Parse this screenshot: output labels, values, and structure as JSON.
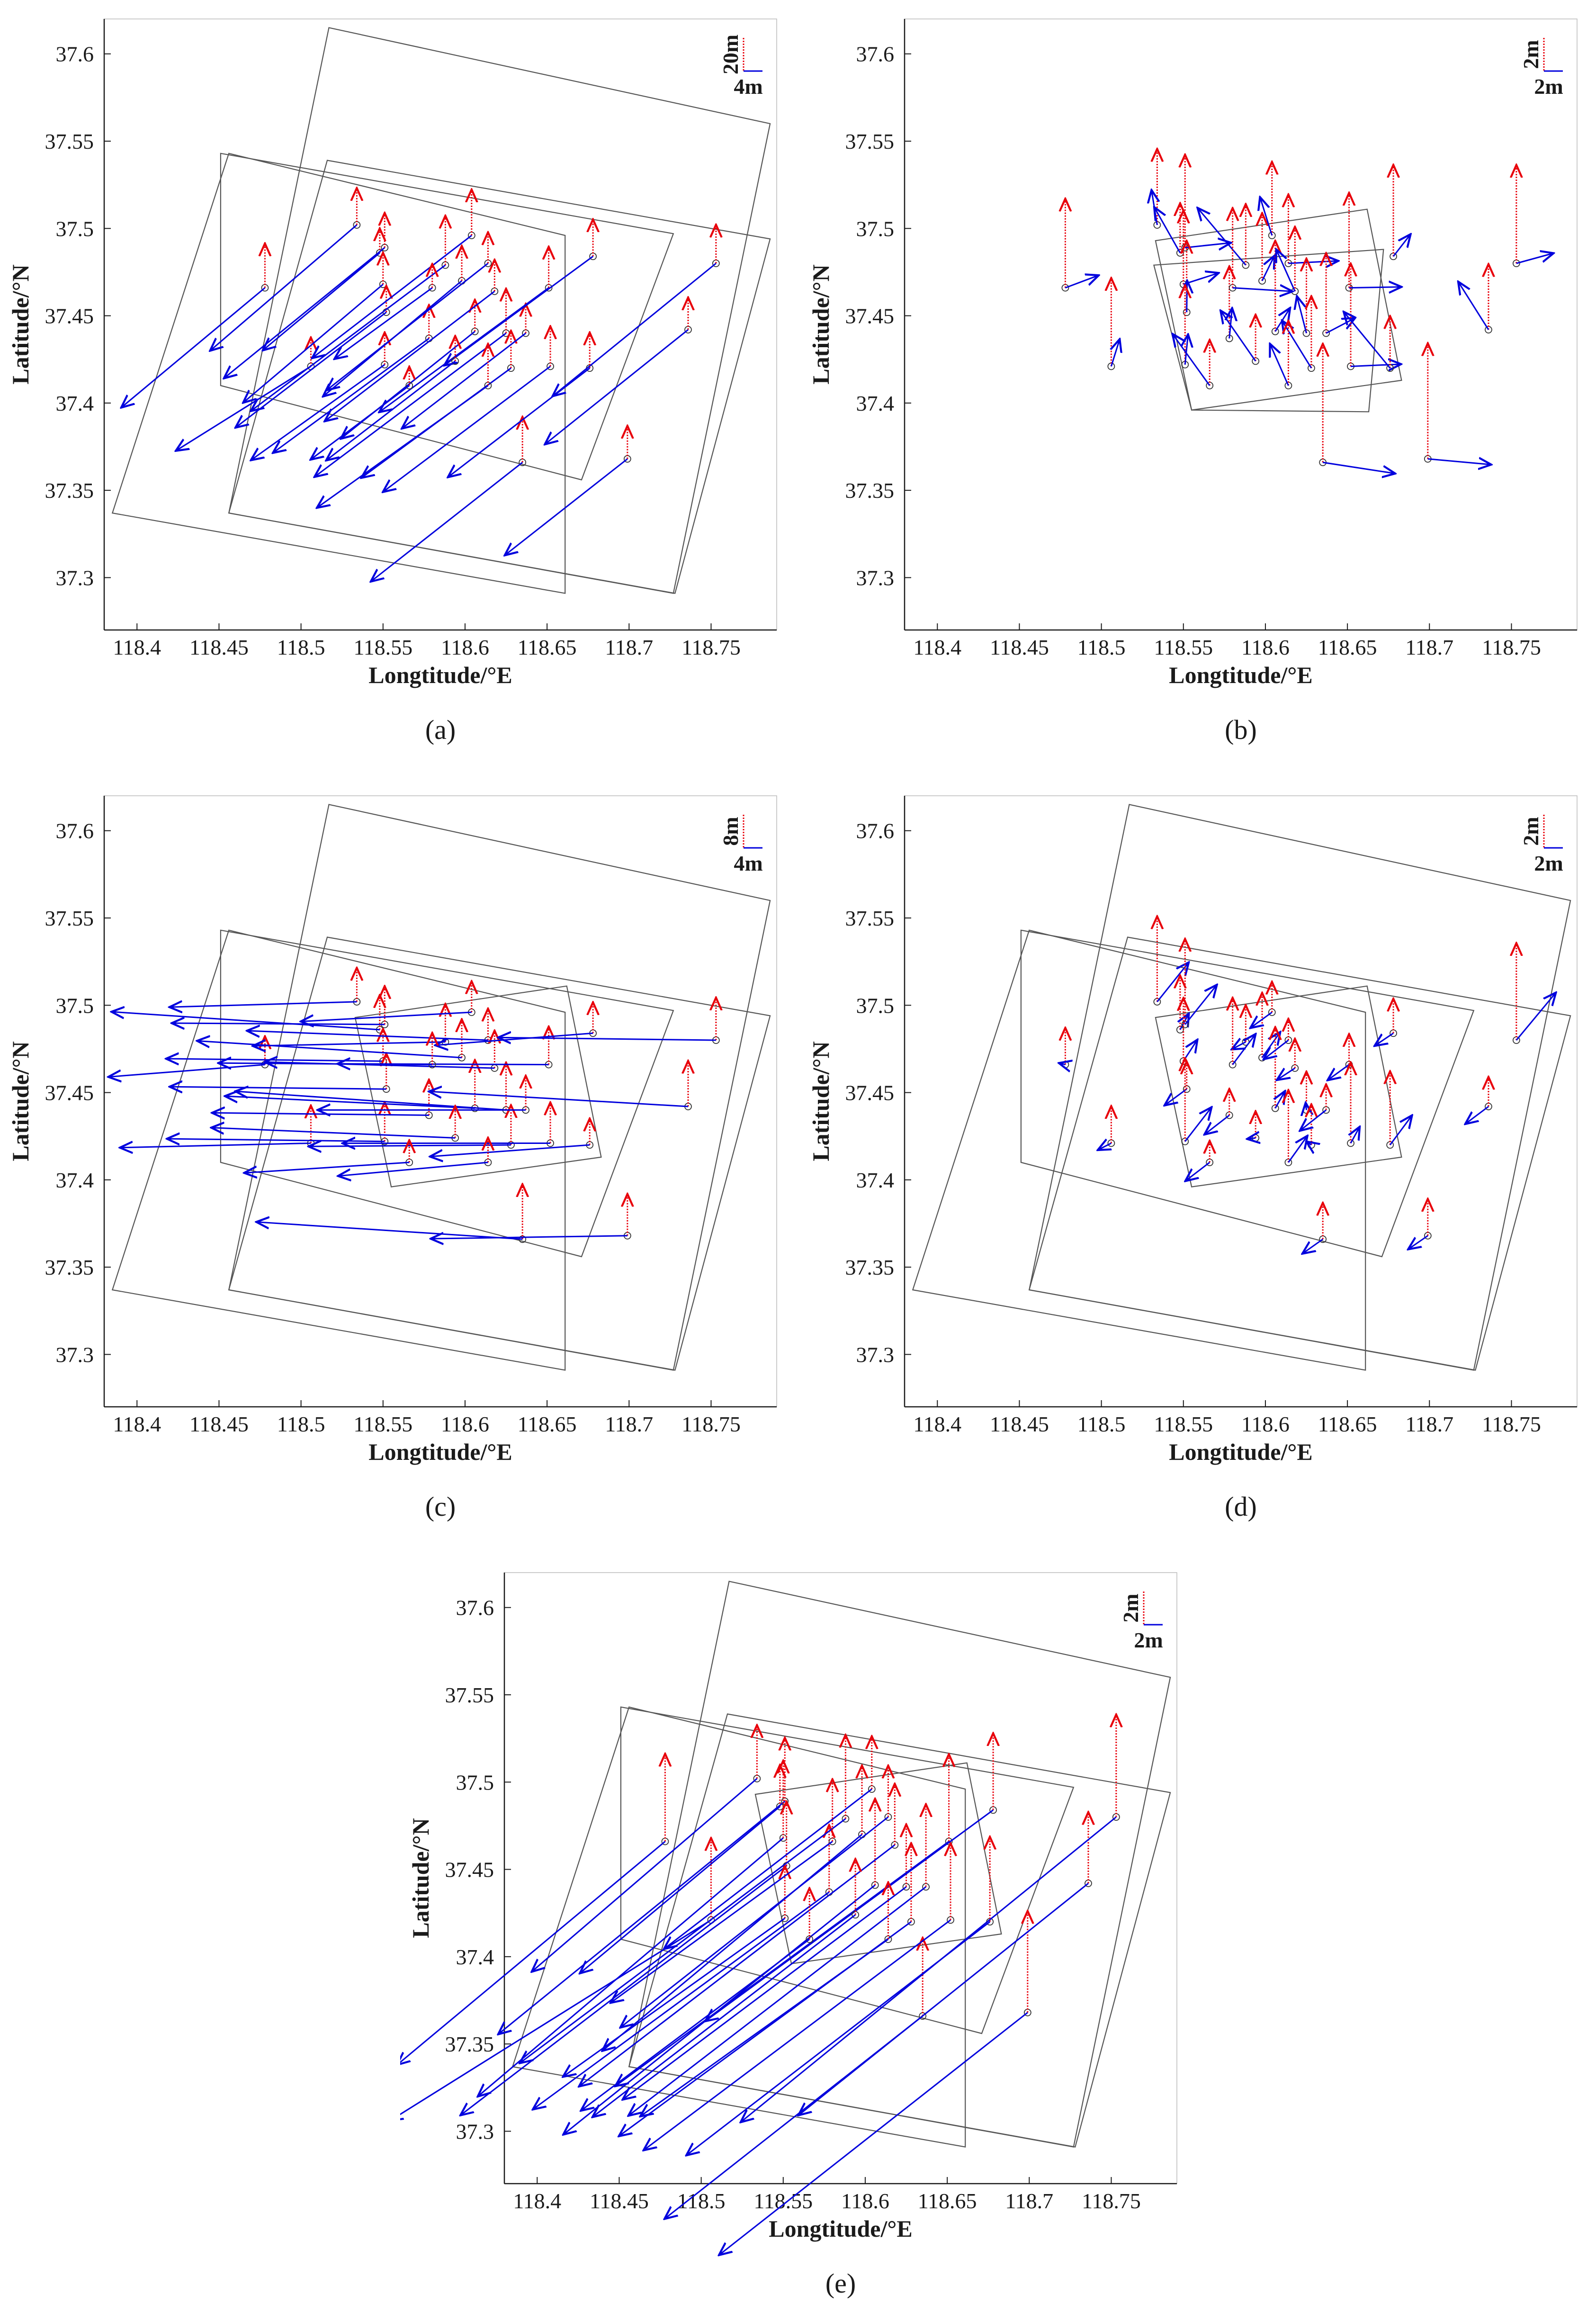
{
  "figure": {
    "xlabel": "Longtitude/°E",
    "ylabel": "Latitude/°N",
    "xticks": [
      "118.4",
      "118.45",
      "118.5",
      "118.55",
      "118.6",
      "118.65",
      "118.7",
      "118.75"
    ],
    "yticks": [
      "37.6",
      "37.55",
      "37.5",
      "37.45",
      "37.4",
      "37.35",
      "37.3"
    ],
    "xlim": [
      118.38,
      118.79
    ],
    "ylim": [
      37.27,
      37.62
    ],
    "colors": {
      "vertical": "#e8000b",
      "horizontal": "#0000dd",
      "frame": "#555555",
      "axis": "#1a1a1a"
    }
  },
  "chart_data": [
    {
      "type": "scatter",
      "panel": "(a)",
      "legend": {
        "vertical": "20m",
        "horizontal": "4m",
        "placement": "top-right"
      },
      "vectors": "three-image frame set; large vertical (up to ~20 m) and SW-directed horizontal offsets",
      "frames": [
        [
          [
            118.517,
            37.615
          ],
          [
            118.786,
            37.56
          ],
          [
            118.727,
            37.291
          ],
          [
            118.456,
            37.337
          ]
        ],
        [
          [
            118.451,
            37.543
          ],
          [
            118.727,
            37.497
          ],
          [
            118.671,
            37.356
          ],
          [
            118.451,
            37.41
          ]
        ],
        [
          [
            118.516,
            37.539
          ],
          [
            118.786,
            37.494
          ],
          [
            118.728,
            37.291
          ],
          [
            118.456,
            37.337
          ]
        ],
        [
          [
            118.456,
            37.543
          ],
          [
            118.661,
            37.496
          ],
          [
            118.661,
            37.291
          ],
          [
            118.385,
            37.337
          ]
        ]
      ],
      "scale": {
        "v": 0.0038,
        "h": 0.0062
      }
    },
    {
      "type": "scatter",
      "panel": "(b)",
      "legend": {
        "vertical": "2m",
        "horizontal": "2m",
        "placement": "top-right"
      },
      "vectors": "single small-frame set; small vertical (~2 m) and mixed horizontal offsets",
      "frames": [
        [
          [
            118.533,
            37.493
          ],
          [
            118.662,
            37.511
          ],
          [
            118.683,
            37.413
          ],
          [
            118.555,
            37.396
          ]
        ],
        [
          [
            118.532,
            37.479
          ],
          [
            118.555,
            37.396
          ],
          [
            118.663,
            37.395
          ],
          [
            118.672,
            37.488
          ]
        ]
      ],
      "scale": {
        "v": 0.0085,
        "h": 0.0062
      }
    },
    {
      "type": "scatter",
      "panel": "(c)",
      "legend": {
        "vertical": "8m",
        "horizontal": "4m",
        "placement": "top-right"
      },
      "vectors": "all frame sets; vertical (~8 m) and westward horizontal offsets",
      "frames": [
        [
          [
            118.517,
            37.615
          ],
          [
            118.786,
            37.56
          ],
          [
            118.727,
            37.291
          ],
          [
            118.456,
            37.337
          ]
        ],
        [
          [
            118.451,
            37.543
          ],
          [
            118.727,
            37.497
          ],
          [
            118.671,
            37.356
          ],
          [
            118.451,
            37.41
          ]
        ],
        [
          [
            118.516,
            37.539
          ],
          [
            118.786,
            37.494
          ],
          [
            118.728,
            37.291
          ],
          [
            118.456,
            37.337
          ]
        ],
        [
          [
            118.456,
            37.543
          ],
          [
            118.661,
            37.496
          ],
          [
            118.661,
            37.291
          ],
          [
            118.385,
            37.337
          ]
        ],
        [
          [
            118.533,
            37.493
          ],
          [
            118.662,
            37.511
          ],
          [
            118.683,
            37.413
          ],
          [
            118.555,
            37.396
          ]
        ]
      ],
      "scale": {
        "v": 0.004,
        "h": 0.007
      }
    },
    {
      "type": "scatter",
      "panel": "(d)",
      "legend": {
        "vertical": "2m",
        "horizontal": "2m",
        "placement": "top-right"
      },
      "vectors": "all frame sets; residual vertical (~2 m) and short mixed horizontal offsets",
      "frames": [
        [
          [
            118.517,
            37.615
          ],
          [
            118.786,
            37.56
          ],
          [
            118.727,
            37.291
          ],
          [
            118.456,
            37.337
          ]
        ],
        [
          [
            118.451,
            37.543
          ],
          [
            118.727,
            37.497
          ],
          [
            118.671,
            37.356
          ],
          [
            118.451,
            37.41
          ]
        ],
        [
          [
            118.516,
            37.539
          ],
          [
            118.786,
            37.494
          ],
          [
            118.728,
            37.291
          ],
          [
            118.456,
            37.337
          ]
        ],
        [
          [
            118.456,
            37.543
          ],
          [
            118.661,
            37.496
          ],
          [
            118.661,
            37.291
          ],
          [
            118.385,
            37.337
          ]
        ],
        [
          [
            118.533,
            37.493
          ],
          [
            118.662,
            37.511
          ],
          [
            118.683,
            37.413
          ],
          [
            118.555,
            37.396
          ]
        ]
      ],
      "scale": {
        "v": 0.0075,
        "h": 0.004
      }
    },
    {
      "type": "scatter",
      "panel": "(e)",
      "legend": {
        "vertical": "2m",
        "horizontal": "2m",
        "placement": "top-right"
      },
      "vectors": "all frame sets; vertical (~2 m) and SW-directed horizontal offsets",
      "frames": [
        [
          [
            118.517,
            37.615
          ],
          [
            118.786,
            37.56
          ],
          [
            118.727,
            37.291
          ],
          [
            118.456,
            37.337
          ]
        ],
        [
          [
            118.451,
            37.543
          ],
          [
            118.727,
            37.497
          ],
          [
            118.671,
            37.356
          ],
          [
            118.451,
            37.41
          ]
        ],
        [
          [
            118.516,
            37.539
          ],
          [
            118.786,
            37.494
          ],
          [
            118.728,
            37.291
          ],
          [
            118.456,
            37.337
          ]
        ],
        [
          [
            118.456,
            37.543
          ],
          [
            118.661,
            37.496
          ],
          [
            118.661,
            37.291
          ],
          [
            118.385,
            37.337
          ]
        ],
        [
          [
            118.533,
            37.493
          ],
          [
            118.662,
            37.511
          ],
          [
            118.683,
            37.413
          ],
          [
            118.555,
            37.396
          ]
        ]
      ],
      "scale": {
        "v": 0.008,
        "h": 0.012
      }
    }
  ],
  "points": [
    {
      "lon": 118.478,
      "lat": 37.466,
      "v": 5.5,
      "dx": -1.2,
      "dy": -1.0
    },
    {
      "lon": 118.506,
      "lat": 37.421,
      "v": 6.0,
      "dx": -1.6,
      "dy": -1.0
    },
    {
      "lon": 118.534,
      "lat": 37.502,
      "v": 5.5,
      "dx": -1.4,
      "dy": -1.2
    },
    {
      "lon": 118.548,
      "lat": 37.486,
      "v": 4.0,
      "dx": -1.2,
      "dy": -1.0
    },
    {
      "lon": 118.551,
      "lat": 37.489,
      "v": 5.5,
      "dx": -1.6,
      "dy": -1.3
    },
    {
      "lon": 118.55,
      "lat": 37.468,
      "v": 4.5,
      "dx": -1.3,
      "dy": -1.1
    },
    {
      "lon": 118.552,
      "lat": 37.452,
      "v": 5.0,
      "dx": -1.7,
      "dy": -1.3
    },
    {
      "lon": 118.551,
      "lat": 37.422,
      "v": 5.5,
      "dx": -1.4,
      "dy": -1.0
    },
    {
      "lon": 118.578,
      "lat": 37.437,
      "v": 5.0,
      "dx": -1.5,
      "dy": -1.1
    },
    {
      "lon": 118.588,
      "lat": 37.479,
      "v": 6.0,
      "dx": -1.6,
      "dy": -1.2
    },
    {
      "lon": 118.598,
      "lat": 37.47,
      "v": 4.5,
      "dx": -1.2,
      "dy": -1.0
    },
    {
      "lon": 118.606,
      "lat": 37.441,
      "v": 6.0,
      "dx": -1.5,
      "dy": -1.2
    },
    {
      "lon": 118.604,
      "lat": 37.496,
      "v": 5.5,
      "dx": -1.3,
      "dy": -1.0
    },
    {
      "lon": 118.614,
      "lat": 37.48,
      "v": 4.0,
      "dx": -1.4,
      "dy": -1.1
    },
    {
      "lon": 118.618,
      "lat": 37.464,
      "v": 5.0,
      "dx": -1.7,
      "dy": -1.3
    },
    {
      "lon": 118.625,
      "lat": 37.44,
      "v": 5.5,
      "dx": -1.6,
      "dy": -1.2
    },
    {
      "lon": 118.628,
      "lat": 37.42,
      "v": 6.0,
      "dx": -1.5,
      "dy": -1.1
    },
    {
      "lon": 118.635,
      "lat": 37.366,
      "v": 6.5,
      "dx": -1.4,
      "dy": -1.1
    },
    {
      "lon": 118.637,
      "lat": 37.44,
      "v": 5.0,
      "dx": -1.3,
      "dy": -1.0
    },
    {
      "lon": 118.651,
      "lat": 37.466,
      "v": 5.5,
      "dx": -1.5,
      "dy": -1.1
    },
    {
      "lon": 118.652,
      "lat": 37.421,
      "v": 6.0,
      "dx": -1.6,
      "dy": -1.2
    },
    {
      "lon": 118.676,
      "lat": 37.42,
      "v": 5.0,
      "dx": -1.3,
      "dy": -1.0
    },
    {
      "lon": 118.678,
      "lat": 37.484,
      "v": 6.0,
      "dx": -1.5,
      "dy": -1.1
    },
    {
      "lon": 118.699,
      "lat": 37.368,
      "v": 6.5,
      "dx": -1.4,
      "dy": -1.1
    },
    {
      "lon": 118.736,
      "lat": 37.442,
      "v": 5.5,
      "dx": -1.5,
      "dy": -1.2
    },
    {
      "lon": 118.753,
      "lat": 37.48,
      "v": 6.0,
      "dx": -1.6,
      "dy": -1.3
    },
    {
      "lon": 118.566,
      "lat": 37.41,
      "v": 4.0,
      "dx": -1.2,
      "dy": -0.9
    },
    {
      "lon": 118.58,
      "lat": 37.466,
      "v": 4.5,
      "dx": -1.1,
      "dy": -0.8
    },
    {
      "lon": 118.594,
      "lat": 37.424,
      "v": 4.0,
      "dx": -1.3,
      "dy": -1.0
    },
    {
      "lon": 118.614,
      "lat": 37.41,
      "v": 5.0,
      "dx": -1.4,
      "dy": -1.0
    }
  ],
  "panel_labels": [
    "(a)",
    "(b)",
    "(c)",
    "(d)",
    "(e)"
  ]
}
